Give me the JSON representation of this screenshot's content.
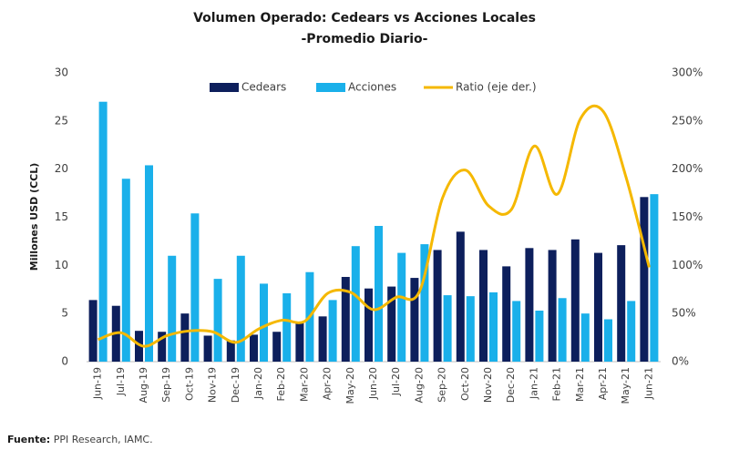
{
  "chart_data": {
    "type": "bar_line",
    "title": "Volumen Operado: Cedears vs Acciones Locales",
    "subtitle": "-Promedio Diario-",
    "y_label": "Millones USD (CCL)",
    "source_label": "Fuente:",
    "source": "PPI Research, IAMC.",
    "categories": [
      "Jun-19",
      "Jul-19",
      "Aug-19",
      "Sep-19",
      "Oct-19",
      "Nov-19",
      "Dec-19",
      "Jan-20",
      "Feb-20",
      "Mar-20",
      "Apr-20",
      "May-20",
      "Jun-20",
      "Jul-20",
      "Aug-20",
      "Sep-20",
      "Oct-20",
      "Nov-20",
      "Dec-20",
      "Jan-21",
      "Feb-21",
      "Mar-21",
      "Apr-21",
      "May-21",
      "Jun-21"
    ],
    "series": [
      {
        "name": "Cedears",
        "color": "#0d1f5c",
        "values": [
          6.4,
          5.8,
          3.2,
          3.1,
          5.0,
          2.7,
          2.2,
          2.8,
          3.1,
          4.0,
          4.7,
          8.8,
          7.6,
          7.8,
          8.7,
          11.6,
          13.5,
          11.6,
          9.9,
          11.8,
          11.6,
          12.7,
          11.3,
          12.1,
          17.1
        ]
      },
      {
        "name": "Acciones",
        "color": "#1ab0ea",
        "values": [
          27,
          19,
          20.4,
          11,
          15.4,
          8.6,
          11,
          8.1,
          7.1,
          9.3,
          6.4,
          12,
          14.1,
          11.3,
          12.2,
          6.9,
          6.8,
          7.2,
          6.3,
          5.3,
          6.6,
          5.0,
          4.4,
          6.3,
          17.4
        ]
      },
      {
        "name": "Ratio (eje der.)",
        "color": "#f5b800",
        "axis": "y2",
        "values": [
          23,
          30,
          16,
          27,
          32,
          31,
          20,
          34,
          43,
          42,
          71,
          72,
          54,
          67,
          73,
          170,
          199,
          162,
          158,
          224,
          174,
          252,
          260,
          191,
          98
        ]
      }
    ],
    "ylim": [
      0,
      30
    ],
    "yticks": [
      0,
      5,
      10,
      15,
      20,
      25,
      30
    ],
    "y2lim": [
      0,
      300
    ],
    "y2ticks": [
      {
        "value": 0,
        "label": "0%"
      },
      {
        "value": 50,
        "label": "50%"
      },
      {
        "value": 100,
        "label": "100%"
      },
      {
        "value": 150,
        "label": "150%"
      },
      {
        "value": 200,
        "label": "200%"
      },
      {
        "value": 250,
        "label": "250%"
      },
      {
        "value": 300,
        "label": "300%"
      }
    ],
    "grid": false
  }
}
